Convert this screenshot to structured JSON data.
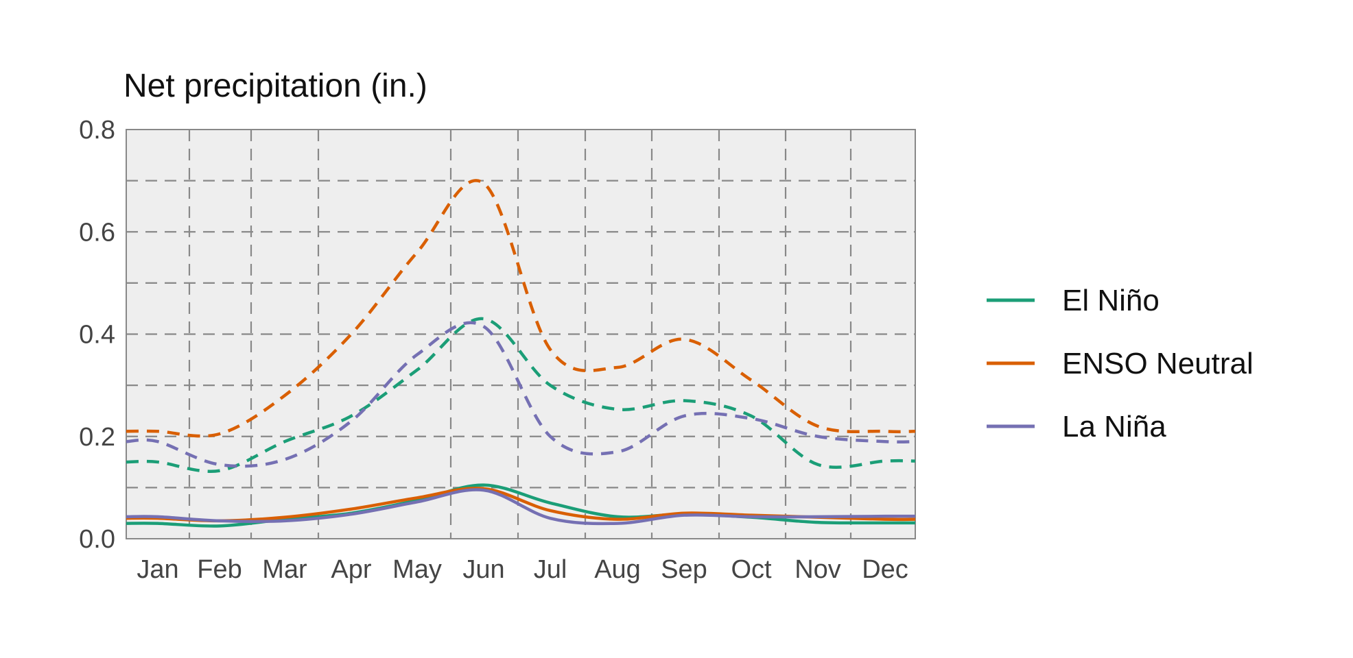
{
  "chart_data": {
    "type": "line",
    "title": "Net precipitation (in.)",
    "xlabel": "",
    "ylabel": "",
    "categories": [
      "Jan",
      "Feb",
      "Mar",
      "Apr",
      "May",
      "Jun",
      "Jul",
      "Aug",
      "Sep",
      "Oct",
      "Nov",
      "Dec"
    ],
    "ylim": [
      0.0,
      0.8
    ],
    "yticks": [
      "0.0",
      "0.2",
      "0.4",
      "0.6",
      "0.8"
    ],
    "grid": true,
    "legend_position": "right",
    "series": [
      {
        "name": "El Niño",
        "color": "#1b9e77",
        "solid": [
          0.03,
          0.025,
          0.038,
          0.05,
          0.075,
          0.105,
          0.07,
          0.043,
          0.048,
          0.042,
          0.032,
          0.031
        ],
        "dashed": [
          0.15,
          0.133,
          0.19,
          0.24,
          0.33,
          0.43,
          0.3,
          0.253,
          0.27,
          0.24,
          0.145,
          0.152
        ]
      },
      {
        "name": "ENSO Neutral",
        "color": "#d95f02",
        "solid": [
          0.04,
          0.035,
          0.042,
          0.058,
          0.08,
          0.098,
          0.055,
          0.038,
          0.05,
          0.046,
          0.042,
          0.038
        ],
        "dashed": [
          0.21,
          0.205,
          0.28,
          0.4,
          0.56,
          0.695,
          0.37,
          0.335,
          0.39,
          0.31,
          0.22,
          0.21
        ]
      },
      {
        "name": "La Niña",
        "color": "#7570b3",
        "solid": [
          0.043,
          0.035,
          0.035,
          0.048,
          0.072,
          0.095,
          0.04,
          0.03,
          0.046,
          0.043,
          0.043,
          0.044
        ],
        "dashed": [
          0.19,
          0.145,
          0.155,
          0.23,
          0.36,
          0.415,
          0.2,
          0.17,
          0.24,
          0.235,
          0.2,
          0.19
        ]
      }
    ]
  }
}
